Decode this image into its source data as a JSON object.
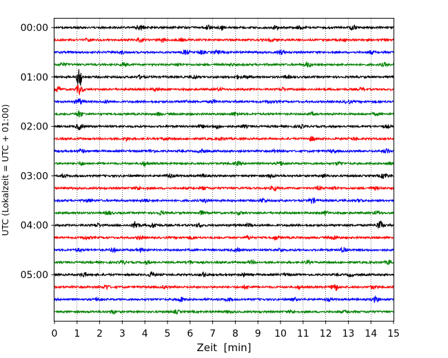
{
  "chart_data": {
    "type": "line",
    "title": "",
    "xlabel": "Zeit  [min]",
    "ylabel": "UTC (Lokalzeit = UTC + 01:00)",
    "xlim": [
      0,
      15
    ],
    "x_ticks": [
      "0",
      "1",
      "2",
      "3",
      "4",
      "5",
      "6",
      "7",
      "8",
      "9",
      "10",
      "11",
      "12",
      "13",
      "14",
      "15"
    ],
    "y_tick_labels": [
      "00:00",
      "01:00",
      "02:00",
      "03:00",
      "04:00",
      "05:00"
    ],
    "y_tick_rows": [
      0,
      4,
      8,
      12,
      16,
      20
    ],
    "vertical_grid": true,
    "grid_style": "dotted",
    "trace_colors": [
      "#000000",
      "#ff0000",
      "#0000ff",
      "#008000"
    ],
    "rows": [
      {
        "start": "00:00",
        "color": "#000000",
        "bursts": [
          [
            3.8,
            1.0
          ],
          [
            6.8,
            0.7
          ],
          [
            7.4,
            0.5
          ],
          [
            9.8,
            0.5
          ],
          [
            10.8,
            0.5
          ],
          [
            13.2,
            0.6
          ]
        ]
      },
      {
        "start": "00:15",
        "color": "#ff0000",
        "bursts": [
          [
            1.5,
            0.4
          ],
          [
            3.8,
            0.5
          ],
          [
            4.8,
            0.5
          ],
          [
            5.6,
            0.4
          ],
          [
            9.6,
            0.5
          ],
          [
            12.8,
            0.4
          ]
        ]
      },
      {
        "start": "00:30",
        "color": "#0000ff",
        "bursts": [
          [
            3.0,
            0.4
          ],
          [
            5.8,
            0.7
          ],
          [
            6.5,
            0.6
          ],
          [
            7.2,
            0.5
          ],
          [
            10.0,
            0.7
          ],
          [
            14.0,
            0.5
          ]
        ]
      },
      {
        "start": "00:45",
        "color": "#008000",
        "bursts": [
          [
            0.4,
            0.5
          ],
          [
            3.1,
            0.5
          ],
          [
            5.5,
            0.4
          ],
          [
            7.8,
            0.4
          ],
          [
            11.2,
            0.8
          ],
          [
            14.6,
            0.5
          ]
        ]
      },
      {
        "start": "01:00",
        "color": "#000000",
        "bursts": [
          [
            1.1,
            4.0
          ],
          [
            3.8,
            0.5
          ],
          [
            6.2,
            0.6
          ],
          [
            8.1,
            0.5
          ],
          [
            8.5,
            0.5
          ],
          [
            10.3,
            0.5
          ]
        ]
      },
      {
        "start": "01:15",
        "color": "#ff0000",
        "bursts": [
          [
            0.15,
            0.8
          ],
          [
            1.1,
            1.5
          ],
          [
            4.5,
            0.5
          ],
          [
            7.3,
            0.4
          ],
          [
            10.1,
            0.5
          ],
          [
            13.6,
            0.4
          ]
        ]
      },
      {
        "start": "01:30",
        "color": "#0000ff",
        "bursts": [
          [
            1.1,
            1.0
          ],
          [
            2.3,
            0.4
          ],
          [
            5.8,
            0.4
          ],
          [
            7.0,
            0.5
          ],
          [
            9.5,
            0.4
          ],
          [
            13.0,
            0.5
          ]
        ]
      },
      {
        "start": "01:45",
        "color": "#008000",
        "bursts": [
          [
            1.1,
            1.0
          ],
          [
            4.6,
            0.4
          ],
          [
            8.0,
            0.6
          ],
          [
            11.4,
            0.4
          ],
          [
            14.2,
            0.4
          ]
        ]
      },
      {
        "start": "02:00",
        "color": "#000000",
        "bursts": [
          [
            1.1,
            1.0
          ],
          [
            6.5,
            0.5
          ],
          [
            7.2,
            0.6
          ],
          [
            8.4,
            0.4
          ],
          [
            10.9,
            0.4
          ],
          [
            14.7,
            0.4
          ]
        ]
      },
      {
        "start": "02:15",
        "color": "#ff0000",
        "bursts": [
          [
            3.2,
            0.5
          ],
          [
            4.9,
            0.4
          ],
          [
            7.4,
            0.4
          ],
          [
            11.4,
            0.7
          ],
          [
            13.3,
            0.4
          ]
        ]
      },
      {
        "start": "02:30",
        "color": "#0000ff",
        "bursts": [
          [
            1.2,
            0.6
          ],
          [
            4.3,
            0.4
          ],
          [
            6.5,
            0.5
          ],
          [
            9.8,
            0.4
          ],
          [
            12.3,
            0.4
          ],
          [
            14.7,
            0.7
          ]
        ]
      },
      {
        "start": "02:45",
        "color": "#008000",
        "bursts": [
          [
            1.2,
            0.5
          ],
          [
            4.0,
            0.7
          ],
          [
            8.1,
            0.5
          ],
          [
            10.0,
            0.7
          ],
          [
            12.6,
            0.5
          ],
          [
            14.8,
            0.4
          ]
        ]
      },
      {
        "start": "03:00",
        "color": "#000000",
        "bursts": [
          [
            0.4,
            0.4
          ],
          [
            5.1,
            0.7
          ],
          [
            6.6,
            0.5
          ],
          [
            9.6,
            0.5
          ],
          [
            11.9,
            0.5
          ],
          [
            14.6,
            0.9
          ]
        ]
      },
      {
        "start": "03:15",
        "color": "#ff0000",
        "bursts": [
          [
            3.7,
            0.5
          ],
          [
            6.6,
            0.4
          ],
          [
            9.7,
            0.7
          ],
          [
            11.7,
            0.5
          ],
          [
            12.4,
            0.5
          ],
          [
            14.2,
            0.4
          ]
        ]
      },
      {
        "start": "03:30",
        "color": "#0000ff",
        "bursts": [
          [
            1.5,
            0.4
          ],
          [
            4.0,
            0.5
          ],
          [
            6.7,
            0.5
          ],
          [
            9.2,
            0.7
          ],
          [
            11.4,
            0.9
          ],
          [
            13.5,
            0.4
          ]
        ]
      },
      {
        "start": "03:45",
        "color": "#008000",
        "bursts": [
          [
            2.4,
            0.6
          ],
          [
            4.7,
            0.5
          ],
          [
            6.5,
            0.6
          ],
          [
            8.2,
            0.4
          ],
          [
            12.0,
            0.5
          ],
          [
            14.3,
            0.5
          ]
        ]
      },
      {
        "start": "04:00",
        "color": "#000000",
        "bursts": [
          [
            1.9,
            0.6
          ],
          [
            3.6,
            1.4
          ],
          [
            4.4,
            0.8
          ],
          [
            6.4,
            0.5
          ],
          [
            8.6,
            0.5
          ],
          [
            14.4,
            1.4
          ]
        ]
      },
      {
        "start": "04:15",
        "color": "#ff0000",
        "bursts": [
          [
            1.4,
            0.6
          ],
          [
            3.8,
            0.5
          ],
          [
            6.1,
            0.4
          ],
          [
            8.6,
            0.5
          ],
          [
            9.8,
            0.6
          ],
          [
            12.4,
            0.7
          ]
        ]
      },
      {
        "start": "04:30",
        "color": "#0000ff",
        "bursts": [
          [
            1.1,
            0.4
          ],
          [
            2.6,
            0.7
          ],
          [
            3.8,
            0.5
          ],
          [
            8.1,
            0.4
          ],
          [
            10.0,
            0.5
          ],
          [
            12.8,
            0.9
          ]
        ]
      },
      {
        "start": "04:45",
        "color": "#008000",
        "bursts": [
          [
            3.0,
            0.6
          ],
          [
            4.1,
            0.5
          ],
          [
            6.0,
            0.5
          ],
          [
            8.7,
            0.5
          ],
          [
            11.2,
            0.4
          ],
          [
            14.8,
            0.6
          ]
        ]
      },
      {
        "start": "05:00",
        "color": "#000000",
        "bursts": [
          [
            1.3,
            0.6
          ],
          [
            4.3,
            0.8
          ],
          [
            6.6,
            0.7
          ],
          [
            8.4,
            0.5
          ],
          [
            10.2,
            0.4
          ],
          [
            13.1,
            0.4
          ]
        ]
      },
      {
        "start": "05:15",
        "color": "#ff0000",
        "bursts": [
          [
            2.3,
            0.7
          ],
          [
            4.9,
            0.4
          ],
          [
            8.5,
            0.5
          ],
          [
            10.8,
            0.4
          ],
          [
            12.4,
            1.2
          ],
          [
            14.1,
            0.5
          ]
        ]
      },
      {
        "start": "05:30",
        "color": "#0000ff",
        "bursts": [
          [
            1.9,
            0.4
          ],
          [
            5.6,
            0.7
          ],
          [
            7.7,
            0.5
          ],
          [
            10.6,
            0.5
          ],
          [
            12.1,
            0.4
          ],
          [
            14.2,
            0.8
          ]
        ]
      },
      {
        "start": "05:45",
        "color": "#008000",
        "bursts": [
          [
            2.6,
            0.5
          ],
          [
            5.4,
            0.4
          ],
          [
            7.7,
            0.4
          ],
          [
            10.5,
            0.4
          ],
          [
            12.9,
            0.4
          ]
        ]
      }
    ]
  }
}
